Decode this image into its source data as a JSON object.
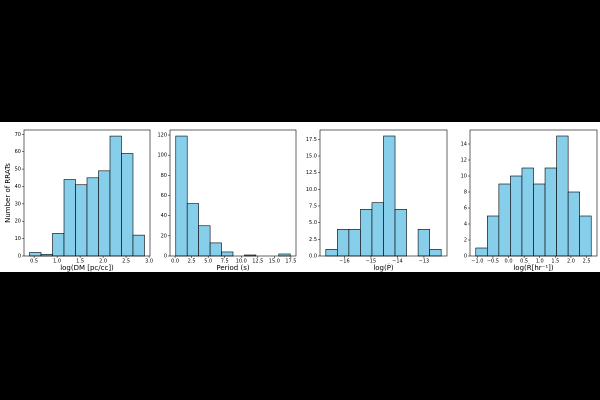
{
  "chart_data": [
    {
      "type": "histogram",
      "xlabel": "log(DM [pc/cc])",
      "ylabel": "Number of RRATs",
      "color": "#87ceeb",
      "bins": [
        0.4,
        0.65,
        0.9,
        1.15,
        1.4,
        1.65,
        1.9,
        2.15,
        2.4,
        2.65,
        2.9
      ],
      "values": [
        2,
        1,
        13,
        44,
        41,
        45,
        49,
        69,
        59,
        12
      ],
      "xlim": [
        0.28,
        3.02
      ],
      "ylim": [
        0,
        72.5
      ],
      "xticks": [
        0.5,
        {
          "value": 1,
          "label": "1.0"
        },
        1.5,
        {
          "value": 2,
          "label": "2.0"
        },
        2.5,
        {
          "value": 3,
          "label": "3.0"
        }
      ],
      "yticks": [
        0,
        10,
        20,
        30,
        40,
        50,
        60,
        70
      ]
    },
    {
      "type": "histogram",
      "xlabel": "Period (s)",
      "color": "#87ceeb",
      "bins": [
        0.1,
        1.83,
        3.56,
        5.29,
        7.02,
        8.75,
        10.48,
        12.21,
        13.94,
        15.67,
        17.4
      ],
      "values": [
        119,
        52,
        30,
        13,
        4,
        0,
        1,
        0,
        0,
        2
      ],
      "xlim": [
        -0.77,
        18.27
      ],
      "ylim": [
        0,
        125
      ],
      "xticks": [
        {
          "value": 0,
          "label": "0.0"
        },
        2.5,
        {
          "value": 5,
          "label": "5.0"
        },
        7.5,
        {
          "value": 10,
          "label": "10.0"
        },
        12.5,
        {
          "value": 15,
          "label": "15.0"
        },
        17.5
      ],
      "yticks": [
        0,
        20,
        40,
        60,
        80,
        100,
        120
      ]
    },
    {
      "type": "histogram",
      "xlabel": "log(Ṗ)",
      "color": "#87ceeb",
      "bins": [
        -16.7,
        -16.265,
        -15.83,
        -15.395,
        -14.96,
        -14.525,
        -14.09,
        -13.655,
        -13.22,
        -12.785,
        -12.35
      ],
      "values": [
        1,
        4,
        4,
        7,
        8,
        18,
        7,
        0,
        4,
        1
      ],
      "xlim": [
        -16.92,
        -12.13
      ],
      "ylim": [
        0,
        18.9
      ],
      "xticks": [
        {
          "value": -16,
          "label": "−16"
        },
        {
          "value": -15,
          "label": "−15"
        },
        {
          "value": -14,
          "label": "−14"
        },
        {
          "value": -13,
          "label": "−13"
        }
      ],
      "yticks": [
        {
          "value": 0,
          "label": "0.0"
        },
        2.5,
        {
          "value": 5,
          "label": "5.0"
        },
        7.5,
        {
          "value": 10,
          "label": "10.0"
        },
        12.5,
        {
          "value": 15,
          "label": "15.0"
        },
        17.5
      ]
    },
    {
      "type": "histogram",
      "xlabel": "log(Ṙ[hr⁻¹])",
      "color": "#87ceeb",
      "bins": [
        -1.05,
        -0.68,
        -0.31,
        0.06,
        0.43,
        0.8,
        1.17,
        1.54,
        1.91,
        2.28,
        2.65
      ],
      "values": [
        1,
        5,
        9,
        10,
        11,
        9,
        11,
        15,
        8,
        5
      ],
      "xlim": [
        -1.235,
        2.835
      ],
      "ylim": [
        0,
        15.75
      ],
      "xticks": [
        {
          "value": -1,
          "label": "−1.0"
        },
        {
          "value": -0.5,
          "label": "−0.5"
        },
        {
          "value": 0,
          "label": "0.0"
        },
        0.5,
        {
          "value": 1,
          "label": "1.0"
        },
        1.5,
        {
          "value": 2,
          "label": "2.0"
        },
        2.5
      ],
      "yticks": [
        0,
        2,
        4,
        6,
        8,
        10,
        12,
        14
      ]
    }
  ]
}
